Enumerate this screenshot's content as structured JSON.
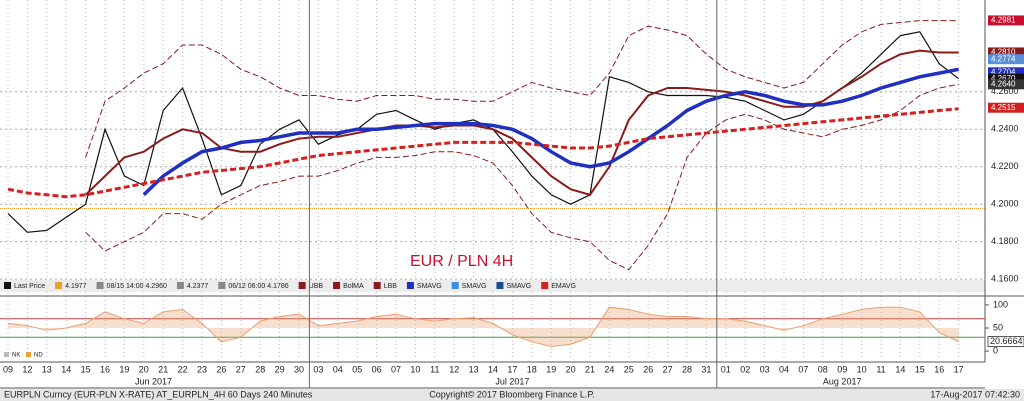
{
  "chart_data": [
    {
      "type": "line",
      "annotation": "EUR / PLN 4H",
      "categories": [
        "09",
        "12",
        "13",
        "14",
        "15",
        "16",
        "19",
        "20",
        "21",
        "22",
        "23",
        "26",
        "27",
        "28",
        "29",
        "30",
        "03",
        "04",
        "05",
        "06",
        "07",
        "10",
        "11",
        "12",
        "13",
        "14",
        "17",
        "18",
        "19",
        "20",
        "21",
        "24",
        "25",
        "26",
        "27",
        "28",
        "31",
        "01",
        "02",
        "03",
        "04",
        "07",
        "08",
        "09",
        "10",
        "11",
        "14",
        "15",
        "16",
        "17"
      ],
      "months": [
        "Jun 2017",
        "Jul 2017",
        "Aug 2017"
      ],
      "ylim": [
        4.1558,
        4.309
      ],
      "yticks": [
        {
          "value": 4.16,
          "label": "4.1600"
        },
        {
          "value": 4.18,
          "label": "4.1800"
        },
        {
          "value": 4.2,
          "label": "4.2000"
        },
        {
          "value": 4.22,
          "label": "4.2200"
        },
        {
          "value": 4.24,
          "label": "4.2400"
        },
        {
          "value": 4.26,
          "label": "4.2600"
        }
      ],
      "grid": true,
      "hline": {
        "value": 4.1977,
        "color": "#e8a030"
      },
      "series": [
        {
          "name": "Last Price",
          "color": "#111111",
          "style": "solid",
          "width": 1.2,
          "values": [
            4.195,
            4.185,
            4.186,
            4.193,
            4.2,
            4.24,
            4.215,
            4.21,
            4.25,
            4.262,
            4.235,
            4.205,
            4.21,
            4.232,
            4.24,
            4.245,
            4.232,
            4.237,
            4.24,
            4.248,
            4.25,
            4.245,
            4.24,
            4.243,
            4.245,
            4.24,
            4.228,
            4.215,
            4.205,
            4.2,
            4.205,
            4.268,
            4.265,
            4.26,
            4.258,
            4.258,
            4.258,
            4.257,
            4.255,
            4.25,
            4.245,
            4.248,
            4.255,
            4.262,
            4.27,
            4.28,
            4.29,
            4.292,
            4.275,
            4.267
          ]
        },
        {
          "name": "UBB",
          "color": "#8b1a1a",
          "style": "dashed",
          "width": 1,
          "values": [
            null,
            null,
            null,
            null,
            4.225,
            4.255,
            4.262,
            4.27,
            4.275,
            4.285,
            4.285,
            4.28,
            4.272,
            4.268,
            4.262,
            4.258,
            4.258,
            4.256,
            4.255,
            4.258,
            4.258,
            4.258,
            4.256,
            4.256,
            4.255,
            4.255,
            4.26,
            4.265,
            4.262,
            4.26,
            4.258,
            4.27,
            4.29,
            4.295,
            4.293,
            4.29,
            4.28,
            4.272,
            4.268,
            4.265,
            4.262,
            4.265,
            4.275,
            4.285,
            4.292,
            4.296,
            4.297,
            4.298,
            4.298,
            4.298
          ]
        },
        {
          "name": "BolMA",
          "color": "#8b1a1a",
          "style": "solid",
          "width": 2,
          "values": [
            null,
            null,
            null,
            null,
            4.205,
            4.215,
            4.225,
            4.228,
            4.235,
            4.24,
            4.238,
            4.23,
            4.228,
            4.228,
            4.232,
            4.235,
            4.236,
            4.236,
            4.238,
            4.24,
            4.242,
            4.242,
            4.241,
            4.242,
            4.242,
            4.24,
            4.235,
            4.225,
            4.215,
            4.208,
            4.205,
            4.22,
            4.245,
            4.258,
            4.262,
            4.262,
            4.261,
            4.26,
            4.258,
            4.255,
            4.252,
            4.252,
            4.255,
            4.262,
            4.268,
            4.275,
            4.28,
            4.282,
            4.281,
            4.281
          ]
        },
        {
          "name": "LBB",
          "color": "#8b1a1a",
          "style": "dashed",
          "width": 1,
          "values": [
            null,
            null,
            null,
            null,
            4.185,
            4.175,
            4.18,
            4.185,
            4.195,
            4.195,
            4.192,
            4.2,
            4.205,
            4.21,
            4.212,
            4.215,
            4.215,
            4.218,
            4.222,
            4.225,
            4.225,
            4.226,
            4.228,
            4.228,
            4.226,
            4.222,
            4.21,
            4.195,
            4.185,
            4.182,
            4.18,
            4.17,
            4.165,
            4.178,
            4.195,
            4.225,
            4.238,
            4.245,
            4.248,
            4.245,
            4.24,
            4.238,
            4.236,
            4.24,
            4.242,
            4.245,
            4.25,
            4.258,
            4.262,
            4.264
          ]
        },
        {
          "name": "SMAVG",
          "color": "#1f2fbf",
          "style": "solid",
          "width": 3.5,
          "values": [
            null,
            null,
            null,
            null,
            null,
            null,
            null,
            4.205,
            4.215,
            4.222,
            4.228,
            4.23,
            4.233,
            4.234,
            4.236,
            4.238,
            4.238,
            4.238,
            4.24,
            4.24,
            4.241,
            4.242,
            4.243,
            4.243,
            4.243,
            4.242,
            4.24,
            4.235,
            4.228,
            4.222,
            4.22,
            4.222,
            4.228,
            4.235,
            4.242,
            4.25,
            4.255,
            4.258,
            4.26,
            4.258,
            4.255,
            4.253,
            4.253,
            4.255,
            4.258,
            4.262,
            4.265,
            4.268,
            4.27,
            4.272
          ]
        },
        {
          "name": "EMAVG",
          "color": "#d42020",
          "style": "dashed",
          "width": 3,
          "values": [
            4.208,
            4.206,
            4.205,
            4.204,
            4.205,
            4.207,
            4.209,
            4.211,
            4.213,
            4.215,
            4.217,
            4.218,
            4.219,
            4.22,
            4.222,
            4.224,
            4.226,
            4.227,
            4.228,
            4.229,
            4.23,
            4.231,
            4.232,
            4.233,
            4.233,
            4.233,
            4.233,
            4.232,
            4.231,
            4.23,
            4.23,
            4.231,
            4.233,
            4.235,
            4.236,
            4.237,
            4.238,
            4.239,
            4.24,
            4.241,
            4.242,
            4.243,
            4.244,
            4.245,
            4.246,
            4.247,
            4.248,
            4.249,
            4.25,
            4.251
          ]
        }
      ],
      "legend": [
        {
          "label": "Last Price",
          "color": "#111111"
        },
        {
          "label": "08/15 14:00 4.2960",
          "color": "#888888"
        },
        {
          "label": "4.2377",
          "color": "#888888"
        },
        {
          "label": "06/12 06:00 4.1786",
          "color": "#888888"
        },
        {
          "label": "UBB",
          "color": "#8b1a1a"
        },
        {
          "label": "BolMA",
          "color": "#8b1a1a"
        },
        {
          "label": "LBB",
          "color": "#8b1a1a"
        },
        {
          "label": "SMAVG",
          "color": "#1f2fbf"
        },
        {
          "label": "SMAVG",
          "color": "#3a8ee0"
        },
        {
          "label": "SMAVG",
          "color": "#1a4f8f"
        },
        {
          "label": "EMAVG",
          "color": "#d42020"
        }
      ],
      "tags": [
        {
          "value": 4.2981,
          "label": "4.2981",
          "color": "#c8102e"
        },
        {
          "value": 4.281,
          "label": "4.2810",
          "color": "#8b1a1a"
        },
        {
          "value": 4.2774,
          "label": "4.2774",
          "color": "#5a8fd8"
        },
        {
          "value": 4.2704,
          "label": "4.2704",
          "color": "#1f2fbf"
        },
        {
          "value": 4.267,
          "label": "4.2670",
          "color": "#111111"
        },
        {
          "value": 4.264,
          "label": "4.2640",
          "color": "#333333"
        },
        {
          "value": 4.2515,
          "label": "4.2515",
          "color": "#d42020"
        }
      ]
    },
    {
      "type": "line",
      "ylim": [
        -15,
        115
      ],
      "yticks": [
        0,
        50,
        100
      ],
      "levels": [
        {
          "value": 70,
          "color": "#c04040"
        },
        {
          "value": 30,
          "color": "#40a040"
        }
      ],
      "color": "#e8a070",
      "values": [
        60,
        55,
        45,
        50,
        60,
        85,
        70,
        60,
        85,
        90,
        60,
        20,
        30,
        65,
        75,
        80,
        55,
        60,
        65,
        75,
        80,
        70,
        65,
        70,
        72,
        60,
        35,
        20,
        10,
        15,
        30,
        95,
        90,
        80,
        75,
        75,
        70,
        70,
        65,
        55,
        45,
        55,
        70,
        80,
        90,
        95,
        95,
        85,
        40,
        20.6664
      ],
      "legend": [
        {
          "label": "NK",
          "color": "#bbbbbb"
        },
        {
          "label": "ND",
          "color": "#e8a030"
        }
      ]
    }
  ],
  "footer": {
    "left": "EURPLN Curncy (EUR-PLN X-RATE) AT_EURPLN_4H 60 Days 240 Minutes",
    "center": "Copyright© 2017 Bloomberg Finance L.P.",
    "right": "17-Aug-2017 07:42:30"
  }
}
